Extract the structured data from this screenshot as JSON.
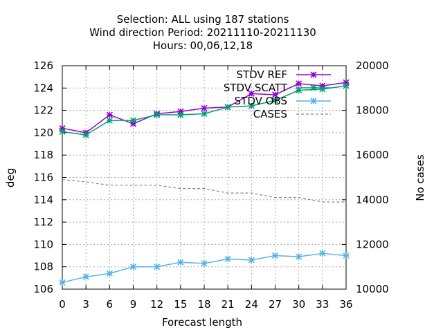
{
  "chart_data": {
    "type": "line",
    "title_lines": [
      "Selection: ALL using   187 stations",
      "Wind direction   Period: 20211110-20211130",
      "Hours:  00,06,12,18"
    ],
    "xlabel": "Forecast length",
    "ylabel": "deg",
    "y2label": "No cases",
    "x": [
      0,
      3,
      6,
      9,
      12,
      15,
      18,
      21,
      24,
      27,
      30,
      33,
      36
    ],
    "xlim": [
      0,
      36
    ],
    "ylim": [
      106,
      126
    ],
    "y2lim": [
      10000,
      20000
    ],
    "xticks": [
      "0",
      "3",
      "6",
      "9",
      "12",
      "15",
      "18",
      "21",
      "24",
      "27",
      "30",
      "33",
      "36"
    ],
    "yticks": [
      "106",
      "108",
      "110",
      "112",
      "114",
      "116",
      "118",
      "120",
      "122",
      "124",
      "126"
    ],
    "y2ticks": [
      "10000",
      "12000",
      "14000",
      "16000",
      "18000",
      "20000"
    ],
    "grid": true,
    "legend_position": "top-right",
    "series": [
      {
        "name": "STDV REF",
        "color": "#9400d3",
        "axis": "y",
        "style": "solid",
        "marker": "x",
        "values": [
          120.4,
          120.0,
          121.6,
          120.8,
          121.7,
          121.9,
          122.2,
          122.3,
          123.5,
          123.4,
          124.4,
          124.2,
          124.5
        ]
      },
      {
        "name": "STDV SCATT",
        "color": "#009e73",
        "axis": "y",
        "style": "solid",
        "marker": "x",
        "values": [
          120.1,
          119.8,
          121.1,
          121.1,
          121.6,
          121.6,
          121.7,
          122.3,
          122.4,
          122.9,
          123.8,
          123.9,
          124.2
        ]
      },
      {
        "name": "STDV OBS",
        "color": "#56b4e9",
        "axis": "y",
        "style": "solid",
        "marker": "x",
        "values": [
          106.6,
          107.1,
          107.4,
          108.0,
          108.0,
          108.4,
          108.3,
          108.7,
          108.6,
          109.0,
          108.9,
          109.2,
          109.0
        ]
      },
      {
        "name": "CASES",
        "color": "#888888",
        "axis": "y2",
        "style": "dashed",
        "marker": "none",
        "values": [
          14900,
          14800,
          14650,
          14650,
          14650,
          14500,
          14500,
          14300,
          14300,
          14100,
          14100,
          13900,
          13900
        ]
      }
    ]
  }
}
